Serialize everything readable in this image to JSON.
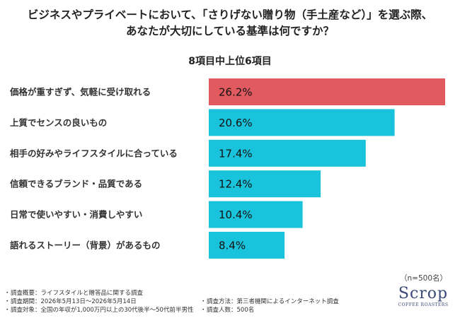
{
  "title_line1": "ビジネスやプライベートにおいて、「さりげない贈り物（手土産など）」を選ぶ際、",
  "title_line2": "あなたが大切にしている基準は何ですか？",
  "chart_data": {
    "type": "bar",
    "orientation": "horizontal",
    "title": "8項目中上位6項目",
    "categories": [
      "価格が重すぎず、気軽に受け取れる",
      "上質でセンスの良いもの",
      "相手の好みやライフスタイルに合っている",
      "信頼できるブランド・品質である",
      "日常で使いやすい・消費しやすい",
      "語れるストーリー（背景）があるもの"
    ],
    "values": [
      26.2,
      20.6,
      17.4,
      12.4,
      10.4,
      8.4
    ],
    "value_labels": [
      "26.2%",
      "20.6%",
      "17.4%",
      "12.4%",
      "10.4%",
      "8.4%"
    ],
    "unit": "%",
    "xlim": [
      0,
      26.2
    ],
    "grid": false,
    "colors": {
      "highlight": "#e05a60",
      "default": "#19c3dc"
    }
  },
  "sample_note": "（n=500名）",
  "notes": {
    "overview": "調査概要：ライフスタイルと贈答品に関する調査",
    "period": "調査期間：2026年5月13日～2026年5月14日",
    "target": "調査対象：全国の年収が1,000万円以上の30代後半～50代前半男性",
    "method": "調査方法：第三者機関によるインターネット調査",
    "count": "調査人数：500名"
  },
  "logo": {
    "main": "Scrop",
    "sub": "COFFEE ROASTERS"
  }
}
